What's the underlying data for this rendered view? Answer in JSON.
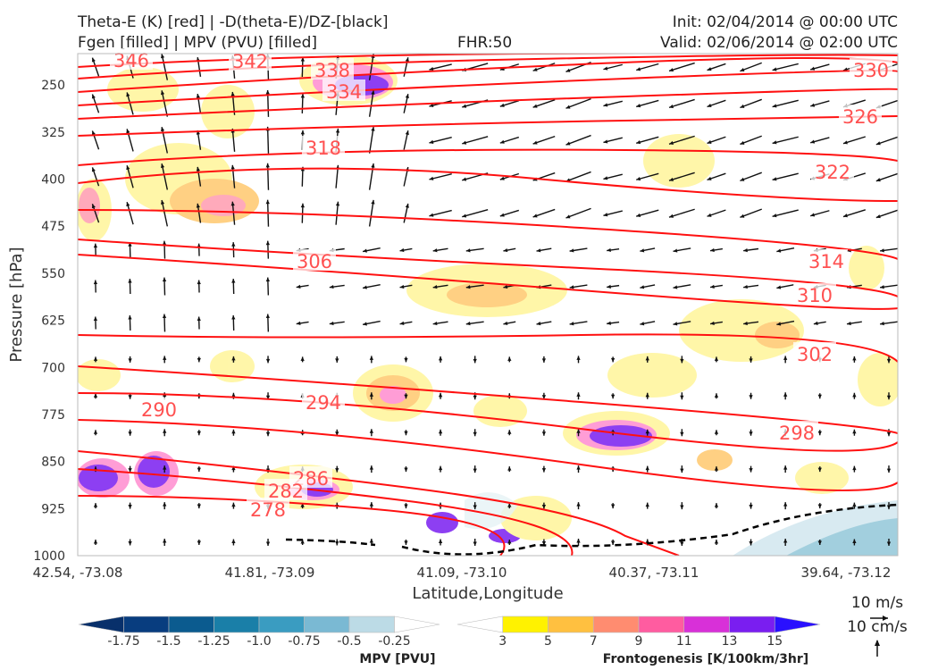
{
  "header": {
    "title_line1": "Theta-E (K) [red] | -D(theta-E)/DZ-[black]",
    "title_line2": "Fgen [filled] | MPV (PVU) [filled]",
    "fhr": "FHR:50",
    "init": "Init: 02/04/2014 @ 00:00 UTC",
    "valid": "Valid: 02/06/2014 @ 02:00 UTC"
  },
  "chart_data": {
    "type": "cross-section",
    "ylabel": "Pressure [hPa]",
    "xlabel": "Latitude,Longitude",
    "ylim": [
      1000,
      200
    ],
    "y_ticks": [
      250,
      325,
      400,
      475,
      550,
      625,
      700,
      775,
      850,
      925,
      1000
    ],
    "x_ticks": [
      "42.54, -73.08",
      "41.81, -73.09",
      "41.09, -73.10",
      "40.37, -73.11",
      "39.64, -73.12"
    ],
    "theta_e_contour_labels": [
      "346",
      "342",
      "338",
      "330",
      "334",
      "326",
      "322",
      "318",
      "314",
      "310",
      "306",
      "302",
      "298",
      "294",
      "290",
      "286",
      "282",
      "278"
    ],
    "wind_scale": {
      "horizontal": "10 m/s",
      "vertical": "10 cm/s"
    },
    "mpv_colorbar": {
      "label": "MPV [PVU]",
      "ticks": [
        "-1.75",
        "-1.5",
        "-1.25",
        "-1.0",
        "-0.75",
        "-0.5",
        "-0.25"
      ],
      "colors": [
        "#08306b",
        "#083d7f",
        "#0b5b8f",
        "#1a7fa8",
        "#3a9cc1",
        "#7ab9d3",
        "#bcdbe6",
        "#ffffff"
      ]
    },
    "fgen_colorbar": {
      "label": "Frontogenesis [K/100km/3hr]",
      "ticks": [
        "3",
        "5",
        "7",
        "9",
        "11",
        "13",
        "15"
      ],
      "colors": [
        "#ffffff",
        "#fff200",
        "#ffc040",
        "#ff8c70",
        "#ff5ca0",
        "#d830d8",
        "#7a1ef0",
        "#2a10ff"
      ]
    }
  }
}
